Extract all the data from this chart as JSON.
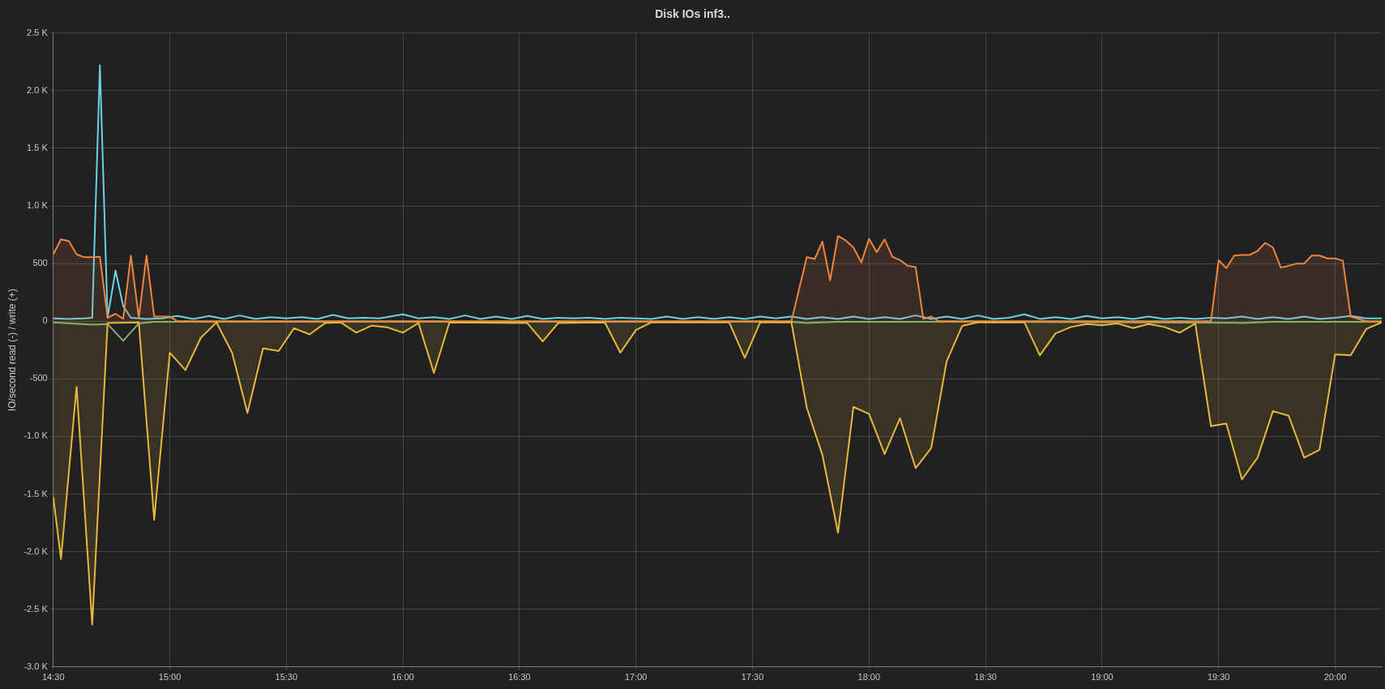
{
  "chart_data": {
    "type": "line",
    "title": "Disk IOs inf3..",
    "ylabel": "IO/second read (-) / write (+)",
    "xlim": [
      14.5,
      20.2
    ],
    "xticks": [
      {
        "value": 14.5,
        "label": "14:30"
      },
      {
        "value": 15,
        "label": "15:00"
      },
      {
        "value": 15.5,
        "label": "15:30"
      },
      {
        "value": 16,
        "label": "16:00"
      },
      {
        "value": 16.5,
        "label": "16:30"
      },
      {
        "value": 17,
        "label": "17:00"
      },
      {
        "value": 17.5,
        "label": "17:30"
      },
      {
        "value": 18,
        "label": "18:00"
      },
      {
        "value": 18.5,
        "label": "18:30"
      },
      {
        "value": 19,
        "label": "19:00"
      },
      {
        "value": 19.5,
        "label": "19:30"
      },
      {
        "value": 20,
        "label": "20:00"
      }
    ],
    "ylim": [
      -3000,
      2500
    ],
    "yticks": [
      {
        "value": -3000,
        "label": "-3.0 K"
      },
      {
        "value": -2500,
        "label": "-2.5 K"
      },
      {
        "value": -2000,
        "label": "-2.0 K"
      },
      {
        "value": -1500,
        "label": "-1.5 K"
      },
      {
        "value": -1000,
        "label": "-1.0 K"
      },
      -500,
      0,
      500,
      {
        "value": 1000,
        "label": "1.0 K"
      },
      {
        "value": 1500,
        "label": "1.5 K"
      },
      {
        "value": 2000,
        "label": "2.0 K"
      },
      {
        "value": 2500,
        "label": "2.5 K"
      }
    ],
    "grid": true,
    "legend": false,
    "marker": "none",
    "line_style": "solid",
    "series": [
      {
        "type": "area",
        "color": "#eab839",
        "x": [
          14.5,
          14.533,
          14.6,
          14.667,
          14.733,
          14.867,
          14.933,
          15,
          15.067,
          15.133,
          15.2,
          15.267,
          15.333,
          15.4,
          15.467,
          15.533,
          15.6,
          15.667,
          15.733,
          15.8,
          15.867,
          15.933,
          16,
          16.067,
          16.133,
          16.2,
          16.533,
          16.6,
          16.667,
          16.867,
          16.933,
          17,
          17.067,
          17.4,
          17.467,
          17.533,
          17.667,
          17.733,
          17.8,
          17.867,
          17.933,
          18,
          18.067,
          18.133,
          18.2,
          18.267,
          18.333,
          18.4,
          18.467,
          18.667,
          18.733,
          18.8,
          18.867,
          18.933,
          19,
          19.067,
          19.133,
          19.2,
          19.267,
          19.333,
          19.4,
          19.467,
          19.533,
          19.6,
          19.667,
          19.733,
          19.8,
          19.867,
          19.933,
          20,
          20.067,
          20.133,
          20.2
        ],
        "values": [
          -1525,
          -2064,
          -569,
          -2633,
          -15,
          -10,
          -1722,
          -273,
          -425,
          -144,
          -10,
          -273,
          -797,
          -235,
          -258,
          -61,
          -114,
          -15,
          -10,
          -99,
          -38,
          -53,
          -99,
          -15,
          -448,
          -10,
          -15,
          -175,
          -15,
          -10,
          -273,
          -76,
          -10,
          -10,
          -319,
          -10,
          -10,
          -751,
          -1161,
          -1836,
          -744,
          -804,
          -1153,
          -842,
          -1275,
          -1100,
          -349,
          -40,
          -10,
          -10,
          -296,
          -106,
          -50,
          -25,
          -35,
          -20,
          -60,
          -25,
          -50,
          -100,
          -20,
          -910,
          -888,
          -1373,
          -1184,
          -781,
          -819,
          -1184,
          -1115,
          -288,
          -296,
          -68,
          -10
        ]
      },
      {
        "type": "area",
        "color": "#ef843c",
        "x": [
          14.5,
          14.533,
          14.567,
          14.6,
          14.633,
          14.667,
          14.7,
          14.733,
          14.767,
          14.8,
          14.833,
          14.867,
          14.9,
          14.933,
          15,
          15.033,
          17.667,
          17.733,
          17.767,
          17.8,
          17.833,
          17.867,
          17.9,
          17.933,
          17.967,
          18,
          18.033,
          18.067,
          18.1,
          18.133,
          18.167,
          18.2,
          18.233,
          18.267,
          18.3,
          19.467,
          19.5,
          19.533,
          19.567,
          19.6,
          19.633,
          19.667,
          19.7,
          19.733,
          19.767,
          19.8,
          19.833,
          19.867,
          19.9,
          19.933,
          19.967,
          20,
          20.033,
          20.067,
          20.133,
          20.2
        ],
        "values": [
          580,
          710,
          695,
          580,
          555,
          555,
          560,
          30,
          65,
          20,
          570,
          30,
          570,
          40,
          40,
          0,
          0,
          555,
          540,
          690,
          355,
          740,
          700,
          640,
          510,
          715,
          600,
          710,
          560,
          530,
          480,
          470,
          20,
          40,
          0,
          0,
          530,
          460,
          570,
          575,
          575,
          610,
          680,
          640,
          465,
          480,
          500,
          500,
          570,
          570,
          545,
          545,
          525,
          40,
          0,
          0
        ]
      },
      {
        "color": "#6ed0e0",
        "x": [
          14.5,
          14.567,
          14.633,
          14.667,
          14.7,
          14.733,
          14.767,
          14.8,
          14.833,
          14.9,
          14.967,
          15.033,
          15.1,
          15.167,
          15.233,
          15.3,
          15.367,
          15.433,
          15.5,
          15.567,
          15.633,
          15.7,
          15.767,
          15.833,
          15.9,
          16,
          16.067,
          16.133,
          16.2,
          16.267,
          16.333,
          16.4,
          16.467,
          16.533,
          16.6,
          16.667,
          16.733,
          16.8,
          16.867,
          16.933,
          17,
          17.067,
          17.133,
          17.2,
          17.267,
          17.333,
          17.4,
          17.467,
          17.533,
          17.6,
          17.667,
          17.733,
          17.8,
          17.867,
          17.933,
          18,
          18.067,
          18.133,
          18.2,
          18.267,
          18.333,
          18.4,
          18.467,
          18.533,
          18.6,
          18.667,
          18.733,
          18.8,
          18.867,
          18.933,
          19,
          19.067,
          19.133,
          19.2,
          19.267,
          19.333,
          19.4,
          19.467,
          19.533,
          19.6,
          19.667,
          19.733,
          19.8,
          19.867,
          19.933,
          20,
          20.067,
          20.133,
          20.2
        ],
        "values": [
          25,
          20,
          25,
          30,
          2220,
          30,
          440,
          130,
          30,
          20,
          25,
          45,
          20,
          45,
          20,
          50,
          20,
          35,
          25,
          35,
          20,
          55,
          25,
          30,
          25,
          60,
          25,
          35,
          20,
          50,
          20,
          40,
          20,
          45,
          20,
          30,
          25,
          30,
          20,
          30,
          25,
          20,
          40,
          20,
          35,
          20,
          35,
          20,
          40,
          25,
          40,
          20,
          35,
          20,
          40,
          20,
          35,
          20,
          50,
          20,
          40,
          20,
          50,
          20,
          30,
          60,
          20,
          35,
          20,
          45,
          25,
          35,
          20,
          40,
          20,
          30,
          20,
          30,
          25,
          40,
          20,
          35,
          20,
          40,
          20,
          30,
          45,
          25,
          25
        ]
      },
      {
        "color": "#7eb26d",
        "x": [
          14.5,
          14.667,
          14.733,
          14.8,
          14.867,
          14.933,
          17.667,
          17.733,
          17.867,
          18.4,
          19.6,
          19.733,
          20.2
        ],
        "values": [
          -10,
          -30,
          -25,
          -170,
          -20,
          -5,
          -5,
          -15,
          -5,
          -5,
          -15,
          -5,
          -5
        ]
      }
    ]
  }
}
